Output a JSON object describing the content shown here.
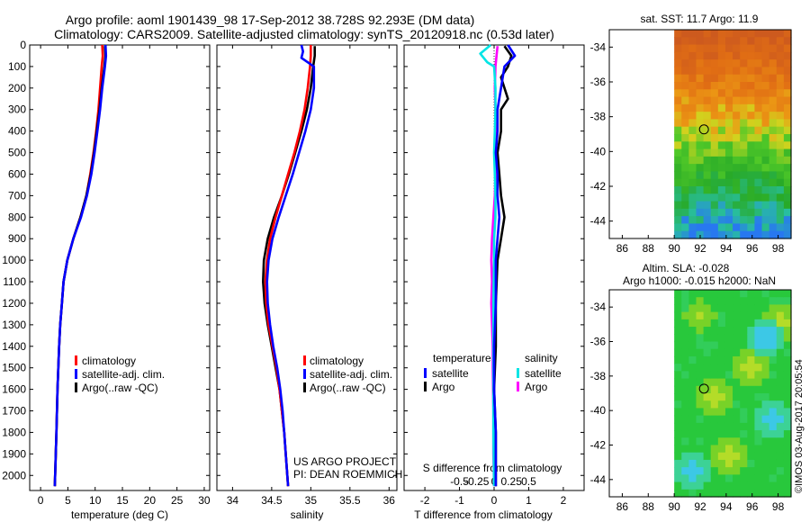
{
  "title_line1": "Argo profile: aoml 1901439_98 17-Sep-2012 38.728S 92.293E (DM data)",
  "title_line2": "Climatology: CARS2009. Satellite-adjusted climatology: synTS_20120918.nc (0.53d later)",
  "credit_line1": "US ARGO PROJECT",
  "credit_line2": "PI: DEAN ROEMMICH",
  "watermark": "©IMOS 03-Aug-2017 20:05:54",
  "colors": {
    "red": "#ff0000",
    "blue": "#0000ff",
    "black": "#000000",
    "cyan": "#00e5e5",
    "magenta": "#ff00ff"
  },
  "chart_data": [
    {
      "type": "line",
      "id": "temperature",
      "xlabel": "temperature (deg C)",
      "ylabel": "",
      "xlim": [
        -2,
        31
      ],
      "ylim": [
        2070,
        0
      ],
      "xticks": [
        0,
        5,
        10,
        15,
        20,
        25,
        30
      ],
      "xtick_labels": [
        "0",
        "5",
        "10",
        "15",
        "20",
        "25",
        "30"
      ],
      "yticks": [
        0,
        100,
        200,
        300,
        400,
        500,
        600,
        700,
        800,
        900,
        1000,
        1100,
        1200,
        1300,
        1400,
        1500,
        1600,
        1700,
        1800,
        1900,
        2000
      ],
      "ytick_labels": [
        "0",
        "100",
        "200",
        "300",
        "400",
        "500",
        "600",
        "700",
        "800",
        "900",
        "1000",
        "1100",
        "1200",
        "1300",
        "1400",
        "1500",
        "1600",
        "1700",
        "1800",
        "1900",
        "2000"
      ],
      "legend": [
        "climatology",
        "satellite-adj. clim.",
        "Argo(..raw -QC)"
      ],
      "series": [
        {
          "name": "climatology",
          "color": "#ff0000",
          "depth": [
            0,
            50,
            100,
            200,
            300,
            400,
            500,
            600,
            700,
            800,
            900,
            1000,
            1100,
            1200,
            1300,
            1400,
            1600,
            1800,
            2050
          ],
          "values": [
            11.3,
            11.4,
            11.2,
            10.9,
            10.6,
            10.2,
            9.7,
            9.1,
            8.4,
            7.3,
            6.0,
            4.9,
            4.2,
            3.9,
            3.6,
            3.4,
            3.1,
            2.9,
            2.6
          ]
        },
        {
          "name": "satellite-adj. clim.",
          "color": "#0000ff",
          "depth": [
            0,
            50,
            100,
            200,
            300,
            400,
            500,
            600,
            700,
            800,
            900,
            1000,
            1100,
            1200,
            1300,
            1400,
            1600,
            1800,
            2050
          ],
          "values": [
            11.9,
            12.0,
            11.8,
            11.3,
            10.9,
            10.4,
            9.9,
            9.3,
            8.5,
            7.4,
            6.0,
            4.9,
            4.2,
            3.9,
            3.6,
            3.4,
            3.1,
            2.9,
            2.6
          ]
        },
        {
          "name": "Argo(..raw -QC)",
          "color": "#000000",
          "depth": [
            5,
            50,
            100,
            200,
            300,
            400,
            500,
            600,
            700,
            800,
            900,
            1000,
            1100,
            1200,
            1300,
            1400,
            1600,
            1800,
            2050
          ],
          "values": [
            11.8,
            11.9,
            11.7,
            11.2,
            10.8,
            10.3,
            9.8,
            9.2,
            8.4,
            7.3,
            6.0,
            4.9,
            4.2,
            3.9,
            3.6,
            3.4,
            3.1,
            2.9,
            2.6
          ]
        }
      ]
    },
    {
      "type": "line",
      "id": "salinity",
      "xlabel": "salinity",
      "xlim": [
        33.8,
        36.1
      ],
      "ylim": [
        2070,
        0
      ],
      "xticks": [
        34,
        34.5,
        35,
        35.5,
        36
      ],
      "xtick_labels": [
        "34",
        "34.5",
        "35",
        "35.5",
        "36"
      ],
      "legend": [
        "climatology",
        "satellite-adj. clim.",
        "Argo(..raw -QC)"
      ],
      "series": [
        {
          "name": "climatology",
          "color": "#ff0000",
          "depth": [
            0,
            50,
            100,
            200,
            300,
            400,
            500,
            600,
            700,
            800,
            900,
            1000,
            1100,
            1200,
            1300,
            1400,
            1500,
            1600,
            1700,
            1800,
            1900,
            2050
          ],
          "values": [
            35.0,
            35.0,
            34.99,
            34.96,
            34.92,
            34.86,
            34.79,
            34.71,
            34.63,
            34.55,
            34.48,
            34.44,
            34.42,
            34.43,
            34.46,
            34.51,
            34.56,
            34.6,
            34.63,
            34.66,
            34.68,
            34.71
          ]
        },
        {
          "name": "satellite-adj. clim.",
          "color": "#0000ff",
          "depth": [
            0,
            30,
            60,
            100,
            200,
            300,
            400,
            500,
            600,
            700,
            800,
            900,
            1000,
            1100,
            1200,
            1300,
            1400,
            1500,
            1600,
            1700,
            1800,
            1900,
            2050
          ],
          "values": [
            34.88,
            34.9,
            34.88,
            35.04,
            35.04,
            35.0,
            34.93,
            34.85,
            34.77,
            34.68,
            34.59,
            34.51,
            34.46,
            34.44,
            34.45,
            34.48,
            34.52,
            34.57,
            34.61,
            34.64,
            34.66,
            34.68,
            34.71
          ]
        },
        {
          "name": "Argo(..raw -QC)",
          "color": "#000000",
          "depth": [
            5,
            50,
            100,
            200,
            300,
            400,
            500,
            600,
            700,
            800,
            900,
            1000,
            1100,
            1200,
            1300,
            1400,
            1500,
            1600,
            1700,
            1800,
            1900,
            2050
          ],
          "values": [
            35.05,
            35.05,
            35.03,
            35.0,
            34.95,
            34.88,
            34.8,
            34.72,
            34.63,
            34.53,
            34.45,
            34.4,
            34.39,
            34.41,
            34.45,
            34.5,
            34.55,
            34.6,
            34.63,
            34.66,
            34.68,
            34.71
          ]
        }
      ]
    },
    {
      "type": "line",
      "id": "difference",
      "xlabel": "T difference from climatology",
      "xlabel_top": "S difference from climatology",
      "xlim": [
        -2.6,
        2.6
      ],
      "ylim": [
        2070,
        0
      ],
      "xticks": [
        -2,
        -1,
        0,
        1,
        2
      ],
      "xtick_labels": [
        "-2",
        "-1",
        "0",
        "1",
        "2"
      ],
      "s_xticks": [
        -0.5,
        -0.25,
        0,
        0.25,
        0.5
      ],
      "s_xtick_labels": [
        "-0.5",
        "-0.25",
        "0",
        "0.25",
        "0.5"
      ],
      "legend_titles": [
        "temperature",
        "salinity"
      ],
      "legend": [
        "satellite",
        "Argo",
        "satellite",
        "Argo"
      ],
      "series": [
        {
          "name": "temperature satellite",
          "color": "#0000ff",
          "depth": [
            0,
            50,
            100,
            200,
            300,
            400,
            500,
            600,
            700,
            800,
            900,
            1000,
            1200,
            1400,
            1600,
            1800,
            2050
          ],
          "values": [
            0.4,
            0.6,
            0.3,
            0.2,
            0.1,
            0.1,
            0.05,
            0.1,
            0.1,
            0.15,
            0.1,
            0.05,
            0.05,
            0.0,
            0.0,
            0.05,
            0.05
          ]
        },
        {
          "name": "temperature Argo",
          "color": "#000000",
          "depth": [
            5,
            50,
            100,
            150,
            200,
            250,
            300,
            400,
            500,
            600,
            700,
            800,
            900,
            1000,
            1200,
            1400,
            1600,
            1800,
            2050
          ],
          "values": [
            0.3,
            0.5,
            0.4,
            0.2,
            0.3,
            0.4,
            0.2,
            0.2,
            0.1,
            0.15,
            0.2,
            0.3,
            0.2,
            0.1,
            0.05,
            0.05,
            0.0,
            0.05,
            0.05
          ]
        },
        {
          "name": "salinity satellite",
          "color": "#00e5e5",
          "depth": [
            0,
            40,
            80,
            100,
            200,
            300,
            400,
            500,
            600,
            700,
            800,
            900,
            1000,
            1200,
            1400,
            1600,
            1800,
            2050
          ],
          "values": [
            -0.05,
            -0.2,
            -0.1,
            0.0,
            0.02,
            0.02,
            0.01,
            0.0,
            0.01,
            0.02,
            0.02,
            0.0,
            0.0,
            -0.01,
            -0.01,
            -0.01,
            -0.01,
            0.0
          ]
        },
        {
          "name": "salinity Argo",
          "color": "#ff00ff",
          "depth": [
            5,
            100,
            200,
            300,
            400,
            500,
            600,
            700,
            800,
            900,
            1000,
            1100,
            1200,
            1300,
            1400,
            1500,
            1700,
            1900,
            2050
          ],
          "values": [
            0.05,
            0.02,
            0.01,
            0.02,
            0.02,
            0.02,
            0.02,
            0.01,
            -0.01,
            -0.03,
            -0.04,
            -0.03,
            -0.04,
            -0.03,
            -0.02,
            -0.02,
            -0.01,
            -0.01,
            0.0
          ]
        }
      ]
    },
    {
      "type": "heatmap",
      "id": "sst-map",
      "title": "sat. SST: 11.7 Argo: 11.9",
      "xlim": [
        85,
        99
      ],
      "ylim": [
        -45,
        -33
      ],
      "xticks": [
        86,
        88,
        90,
        92,
        94,
        96,
        98
      ],
      "xtick_labels": [
        "86",
        "88",
        "90",
        "92",
        "94",
        "96",
        "98"
      ],
      "yticks": [
        -34,
        -36,
        -38,
        -40,
        -42,
        -44
      ],
      "ytick_labels": [
        "-34",
        "-36",
        "-38",
        "-40",
        "-42",
        "-44"
      ],
      "marker": {
        "lon": 92.29,
        "lat": -38.73
      },
      "data_lon_range": [
        90,
        99
      ]
    },
    {
      "type": "heatmap",
      "id": "sla-map",
      "title": "Altim. SLA: -0.028",
      "subtitle": "Argo h1000: -0.015 h2000: NaN",
      "xlim": [
        85,
        99
      ],
      "ylim": [
        -45,
        -33
      ],
      "xticks": [
        86,
        88,
        90,
        92,
        94,
        96,
        98
      ],
      "xtick_labels": [
        "86",
        "88",
        "90",
        "92",
        "94",
        "96",
        "98"
      ],
      "yticks": [
        -34,
        -36,
        -38,
        -40,
        -42,
        -44
      ],
      "ytick_labels": [
        "-34",
        "-36",
        "-38",
        "-40",
        "-42",
        "-44"
      ],
      "marker": {
        "lon": 92.29,
        "lat": -38.73
      },
      "data_lon_range": [
        90,
        99
      ]
    }
  ]
}
